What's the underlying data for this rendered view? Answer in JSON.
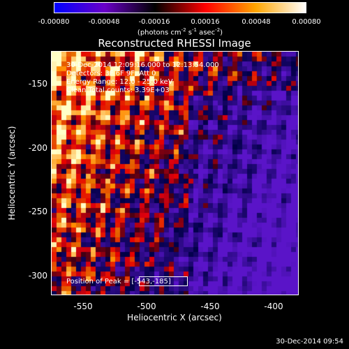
{
  "colorbar": {
    "tick_labels": [
      "-0.00080",
      "-0.00048",
      "-0.00016",
      "0.00016",
      "0.00048",
      "0.00080"
    ],
    "units_text": "(photons cm",
    "units_exp1": "-2",
    "units_mid": " s",
    "units_exp2": "-1",
    "units_mid2": " asec",
    "units_exp3": "-2",
    "units_end": ")",
    "colors": [
      "#0000ff",
      "#6a00c8",
      "#000000",
      "#ff0000",
      "#ffa500",
      "#ffffff"
    ]
  },
  "title": "Reconstructed RHESSI Image",
  "info": {
    "line1": "30-Dec-2014 12:09:16.000 to 12:13:54.000",
    "line2": "Detectors: 3F 6F 9F, Att 0",
    "line3": "Energy Range: 12.0 - 25.0 keV",
    "line4": "Clean     Total counts: 3.39E+03",
    "peak_label": "Position of Peak = [-543,-185]"
  },
  "axes": {
    "xlabel": "Heliocentric X (arcsec)",
    "ylabel": "Heliocentric Y (arcsec)",
    "xticks": [
      "-550",
      "-500",
      "-450",
      "-400"
    ],
    "yticks": [
      "-150",
      "-200",
      "-250",
      "-300"
    ],
    "xlim": [
      -575,
      -380
    ],
    "ylim": [
      -320,
      -130
    ]
  },
  "timestamp": "30-Dec-2014 09:54"
}
